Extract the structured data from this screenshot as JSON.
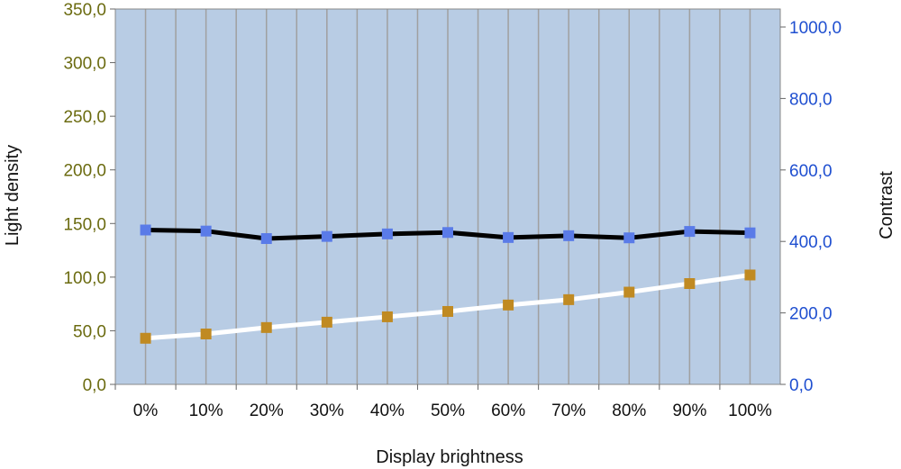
{
  "chart_data": {
    "type": "line",
    "xlabel": "Display brightness",
    "ylabel_left": "Light density",
    "ylabel_right": "Contrast",
    "categories": [
      "0%",
      "10%",
      "20%",
      "30%",
      "40%",
      "50%",
      "60%",
      "70%",
      "80%",
      "90%",
      "100%"
    ],
    "y_left": {
      "ylim": [
        0,
        350
      ],
      "ticks": [
        "0,0",
        "50,0",
        "100,0",
        "150,0",
        "200,0",
        "250,0",
        "300,0",
        "350,0"
      ],
      "color": "#6b6b10"
    },
    "y_right": {
      "ylim": [
        0,
        1000
      ],
      "ticks": [
        "0,0",
        "200,0",
        "400,0",
        "600,0",
        "800,0",
        "1000,0"
      ],
      "color": "#1f4fd0"
    },
    "grid": true,
    "plot_background": "#b8cce4",
    "series": [
      {
        "axis": "left",
        "line_color": "#ffffff",
        "marker_color": "#c08a22",
        "values": [
          43,
          47,
          53,
          58,
          63,
          68,
          74,
          79,
          86,
          94,
          102
        ]
      },
      {
        "axis": "right",
        "line_color": "#000000",
        "marker_color": "#5a7be8",
        "values": [
          432,
          429,
          408,
          414,
          421,
          425,
          411,
          416,
          410,
          428,
          424
        ]
      }
    ]
  }
}
